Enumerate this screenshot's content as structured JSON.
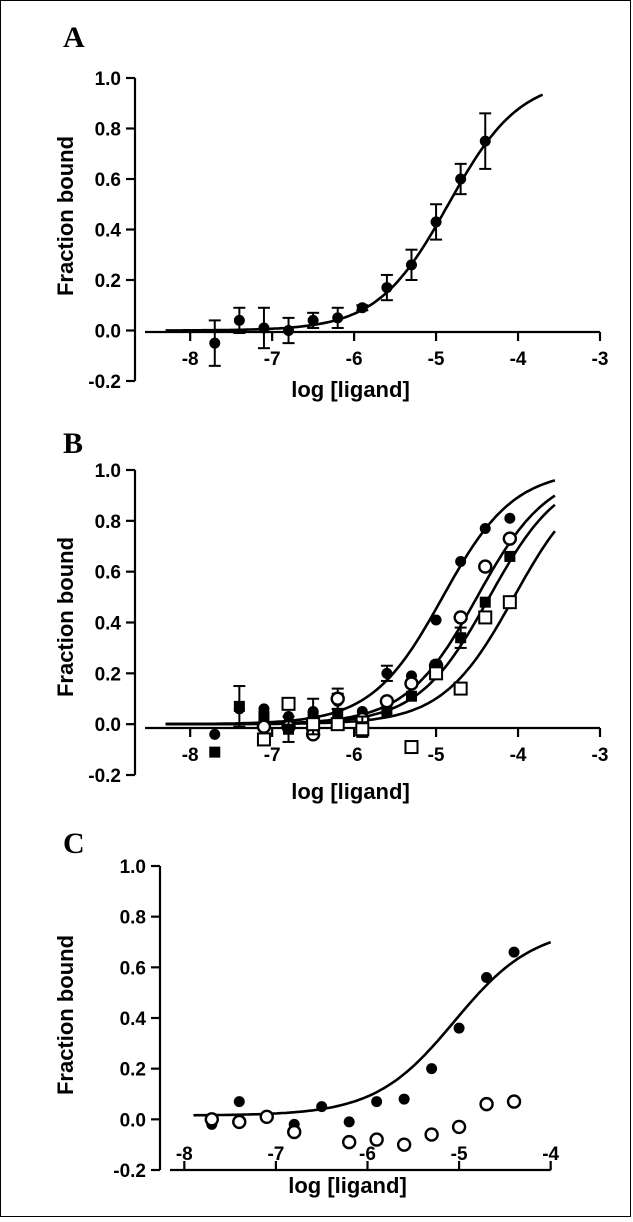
{
  "panels": [
    {
      "letter": "A",
      "ylabel": "Fraction bound",
      "xlabel": "log [ligand]"
    },
    {
      "letter": "B",
      "ylabel": "Fraction bound",
      "xlabel": "log [ligand]"
    },
    {
      "letter": "C",
      "ylabel": "Fraction bound",
      "xlabel": "log [ligand]"
    }
  ],
  "chart_data": [
    {
      "type": "scatter",
      "title": "",
      "xlabel": "log [ligand]",
      "ylabel": "Fraction bound",
      "xlim": [
        -8.6,
        -3
      ],
      "ylim": [
        -0.2,
        1.0
      ],
      "xticks": [
        -8,
        -7,
        -6,
        -5,
        -4,
        -3
      ],
      "yticks": [
        -0.2,
        0.0,
        0.2,
        0.4,
        0.6,
        0.8,
        1.0
      ],
      "grid": false,
      "series": [
        {
          "marker": "filled-circle",
          "x": [
            -7.7,
            -7.4,
            -7.1,
            -6.8,
            -6.5,
            -6.2,
            -5.9,
            -5.6,
            -5.3,
            -5.0,
            -4.7,
            -4.4
          ],
          "y": [
            -0.05,
            0.04,
            0.01,
            0.0,
            0.04,
            0.05,
            0.09,
            0.17,
            0.26,
            0.43,
            0.6,
            0.75
          ],
          "err": [
            0.09,
            0.05,
            0.08,
            0.05,
            0.03,
            0.04,
            0.01,
            0.05,
            0.06,
            0.07,
            0.06,
            0.11
          ],
          "fit": {
            "x": [
              -8.3,
              -3.7
            ],
            "ec50": -4.85,
            "top": 1.0,
            "bottom": 0.0
          }
        }
      ]
    },
    {
      "type": "scatter",
      "title": "",
      "xlabel": "log [ligand]",
      "ylabel": "Fraction bound",
      "xlim": [
        -8.6,
        -3
      ],
      "ylim": [
        -0.2,
        1.0
      ],
      "xticks": [
        -8,
        -7,
        -6,
        -5,
        -4,
        -3
      ],
      "yticks": [
        -0.2,
        0.0,
        0.2,
        0.4,
        0.6,
        0.8,
        1.0
      ],
      "grid": false,
      "series": [
        {
          "marker": "filled-circle",
          "x": [
            -7.7,
            -7.4,
            -7.1,
            -6.8,
            -6.5,
            -6.2,
            -5.9,
            -5.6,
            -5.3,
            -5.0,
            -4.7,
            -4.4,
            -4.1
          ],
          "y": [
            -0.04,
            0.06,
            0.06,
            0.03,
            0.05,
            0.09,
            0.05,
            0.2,
            0.19,
            0.41,
            0.64,
            0.77,
            0.81
          ],
          "err": [
            0,
            0,
            0,
            0,
            0,
            0.03,
            0,
            0.03,
            0,
            0,
            0,
            0,
            0
          ],
          "fit": {
            "x": [
              -8.3,
              -3.55
            ],
            "ec50": -4.92,
            "top": 1.0,
            "bottom": 0.0
          }
        },
        {
          "marker": "open-circle",
          "x": [
            -7.1,
            -6.8,
            -6.5,
            -6.2,
            -5.9,
            -5.6,
            -5.3,
            -5.0,
            -4.7,
            -4.4,
            -4.1
          ],
          "y": [
            -0.01,
            -0.01,
            -0.04,
            0.1,
            0.02,
            0.09,
            0.16,
            0.23,
            0.42,
            0.62,
            0.73
          ],
          "err": [
            0,
            0,
            0,
            0.04,
            0,
            0,
            0,
            0,
            0,
            0,
            0
          ],
          "fit": {
            "x": [
              -8.3,
              -3.55
            ],
            "ec50": -4.5,
            "top": 1.0,
            "bottom": 0.0
          }
        },
        {
          "marker": "filled-square",
          "x": [
            -7.7,
            -7.4,
            -7.1,
            -6.8,
            -6.5,
            -6.2,
            -5.9,
            -5.6,
            -5.3,
            -5.0,
            -4.7,
            -4.4,
            -4.1
          ],
          "y": [
            -0.11,
            0.07,
            0.03,
            -0.02,
            0.03,
            0.04,
            -0.01,
            0.05,
            0.11,
            0.23,
            0.34,
            0.48,
            0.66
          ],
          "err": [
            0,
            0.08,
            0,
            0.05,
            0.07,
            0,
            0.04,
            0,
            0,
            0,
            0.04,
            0,
            0
          ],
          "fit": {
            "x": [
              -8.3,
              -3.55
            ],
            "ec50": -4.35,
            "top": 1.0,
            "bottom": 0.0
          }
        },
        {
          "marker": "open-square",
          "x": [
            -7.1,
            -6.8,
            -6.5,
            -6.2,
            -5.9,
            -5.3,
            -5.0,
            -4.7,
            -4.4,
            -4.1
          ],
          "y": [
            -0.06,
            0.08,
            0.0,
            0.0,
            -0.02,
            -0.09,
            0.2,
            0.14,
            0.42,
            0.48
          ],
          "err": [
            0,
            0,
            0,
            0,
            0,
            0,
            0,
            0,
            0,
            0
          ],
          "fit": {
            "x": [
              -8.3,
              -3.55
            ],
            "ec50": -4.05,
            "top": 1.0,
            "bottom": 0.0
          }
        }
      ]
    },
    {
      "type": "scatter",
      "title": "",
      "xlabel": "log [ligand]",
      "ylabel": "Fraction bound",
      "xlim": [
        -8.2,
        -3.8
      ],
      "ylim": [
        -0.2,
        1.0
      ],
      "xticks": [
        -8,
        -7,
        -6,
        -5,
        -4
      ],
      "yticks": [
        -0.2,
        0.0,
        0.2,
        0.4,
        0.6,
        0.8,
        1.0
      ],
      "grid": false,
      "series": [
        {
          "marker": "filled-circle",
          "x": [
            -7.7,
            -7.4,
            -6.8,
            -6.5,
            -6.2,
            -5.9,
            -5.6,
            -5.3,
            -5.0,
            -4.7,
            -4.4
          ],
          "y": [
            -0.02,
            0.07,
            -0.02,
            0.05,
            -0.01,
            0.07,
            0.08,
            0.2,
            0.36,
            0.56,
            0.66
          ],
          "err": [
            0,
            0,
            0,
            0,
            0,
            0,
            0,
            0,
            0,
            0,
            0
          ],
          "fit": {
            "x": [
              -7.9,
              -4.0
            ],
            "ec50": -5.05,
            "top": 0.76,
            "bottom": 0.015
          }
        },
        {
          "marker": "open-circle",
          "x": [
            -7.7,
            -7.4,
            -7.1,
            -6.8,
            -6.2,
            -5.9,
            -5.6,
            -5.3,
            -5.0,
            -4.7,
            -4.4
          ],
          "y": [
            0.0,
            -0.01,
            0.01,
            -0.05,
            -0.09,
            -0.08,
            -0.1,
            -0.06,
            -0.03,
            0.06,
            0.07
          ],
          "err": [
            0,
            0,
            0,
            0,
            0,
            0,
            0,
            0,
            0,
            0,
            0
          ]
        }
      ]
    }
  ]
}
